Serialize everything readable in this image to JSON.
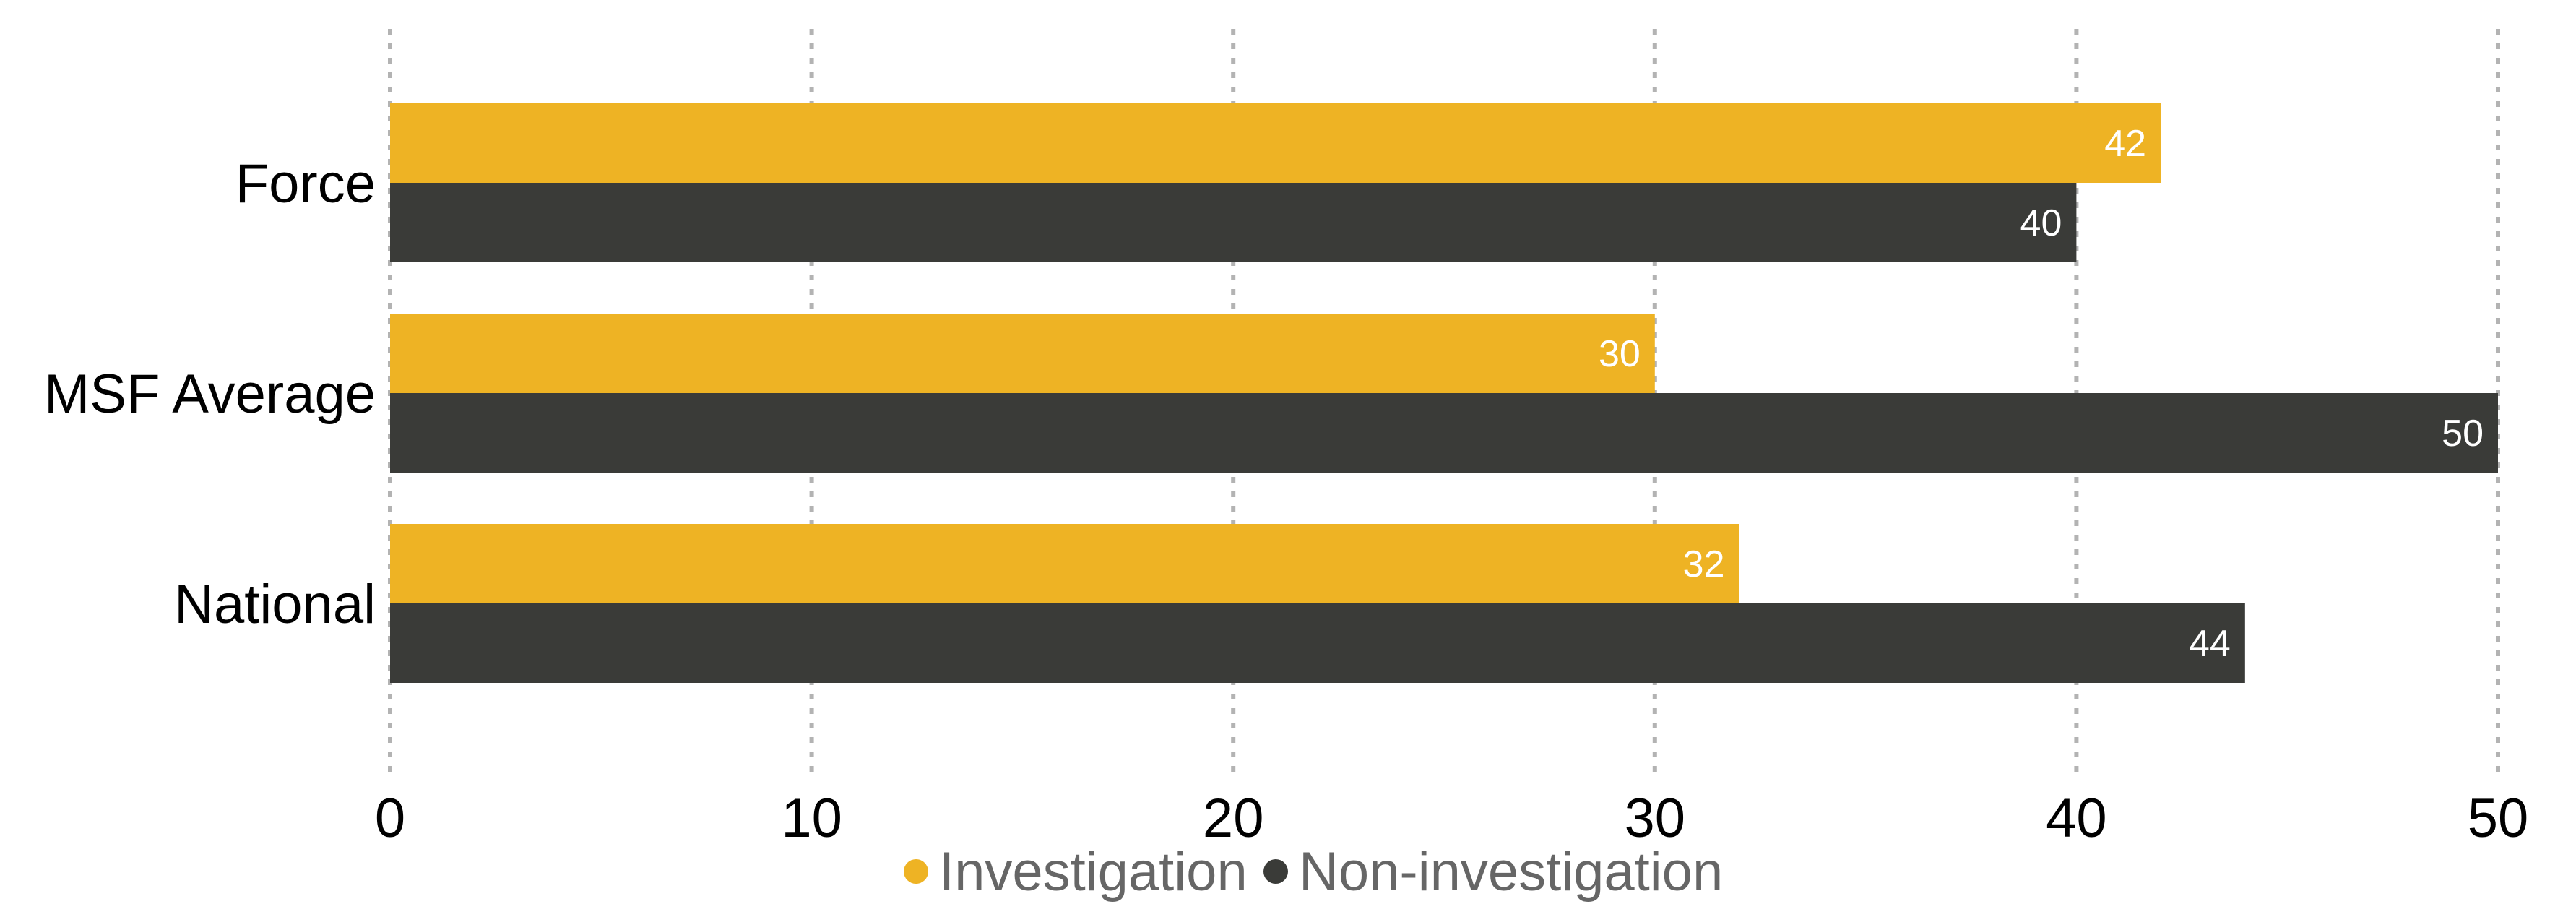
{
  "chart_data": {
    "type": "bar",
    "orientation": "horizontal",
    "categories": [
      "Force",
      "MSF Average",
      "National"
    ],
    "series": [
      {
        "name": "Investigation",
        "values": [
          42,
          30,
          32
        ],
        "color": "#EEB324"
      },
      {
        "name": "Non-investigation",
        "values": [
          40,
          50,
          44
        ],
        "color": "#3A3B38"
      }
    ],
    "x_ticks": [
      "0",
      "10",
      "20",
      "30",
      "40",
      "50"
    ],
    "xlim": [
      0,
      50
    ],
    "grid": "vertical dotted",
    "legend": "bottom",
    "data_labels": true
  }
}
